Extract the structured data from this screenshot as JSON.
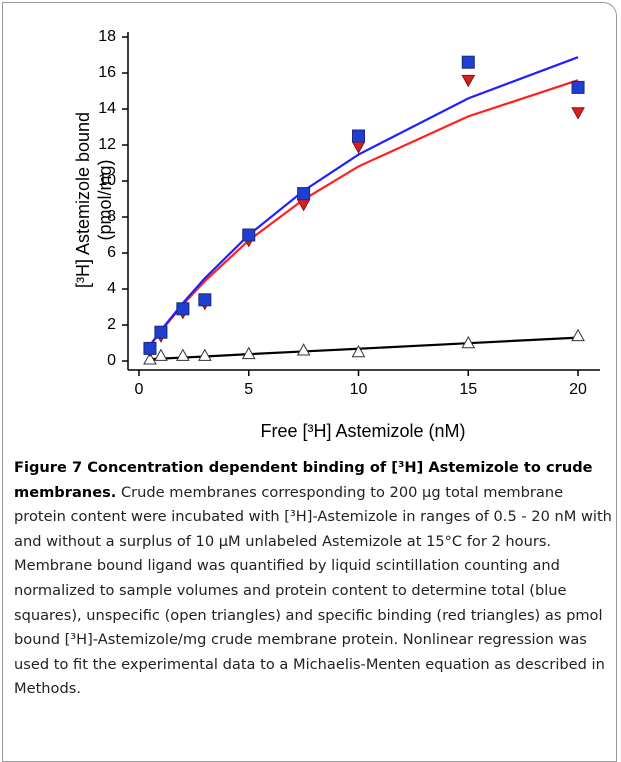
{
  "chart_data": {
    "type": "scatter",
    "x_label": "Free [³H] Astemizole (nM)",
    "y_label": [
      "[³H] Astemizole bound",
      "(pmol/mg)"
    ],
    "x": [
      0.5,
      1,
      2,
      3,
      5,
      7.5,
      10,
      15,
      20
    ],
    "series": [
      {
        "color": "#ffffff",
        "marker": "triangle-up",
        "values": [
          0.1,
          0.3,
          0.3,
          0.3,
          0.4,
          0.6,
          0.5,
          1.0,
          1.4
        ]
      },
      {
        "color": "#d42020",
        "marker": "triangle-down",
        "values": [
          0.6,
          1.4,
          2.7,
          3.2,
          6.7,
          8.7,
          11.9,
          15.6,
          13.8
        ]
      },
      {
        "color": "#1f3fd0",
        "marker": "square",
        "values": [
          0.7,
          1.6,
          2.9,
          3.4,
          7.0,
          9.3,
          12.5,
          16.6,
          15.2
        ]
      }
    ],
    "fits": [
      {
        "color": "#000000",
        "x": [
          0.5,
          1,
          2,
          3,
          5,
          7.5,
          10,
          15,
          20
        ],
        "values": [
          0.1,
          0.13,
          0.19,
          0.25,
          0.38,
          0.53,
          0.68,
          0.99,
          1.3
        ]
      },
      {
        "color": "#ff2020",
        "x": [
          0.5,
          1,
          2,
          3,
          5,
          7.5,
          10,
          15,
          20
        ],
        "values": [
          0.85,
          1.66,
          3.13,
          4.44,
          6.7,
          8.97,
          10.81,
          13.59,
          15.6
        ]
      },
      {
        "color": "#1f1fff",
        "x": [
          0.5,
          1,
          2,
          3,
          5,
          7.5,
          10,
          15,
          20
        ],
        "values": [
          0.87,
          1.7,
          3.22,
          4.6,
          7.0,
          9.46,
          11.47,
          14.59,
          16.88
        ]
      }
    ],
    "xlim": [
      -0.5,
      21
    ],
    "ylim": [
      -0.5,
      18
    ],
    "xticks": [
      0,
      5,
      10,
      15,
      20
    ],
    "yticks": [
      0,
      2,
      4,
      6,
      8,
      10,
      12,
      14,
      16,
      18
    ]
  },
  "caption": {
    "title": "Figure 7 Concentration dependent binding of [³H] Astemizole to crude membranes.",
    "text": "Crude membranes corresponding to 200 µg total membrane protein content were incubated with [³H]-Astemizole in ranges of 0.5 - 20 nM with and without a surplus of 10 µM unlabeled Astemizole at 15°C for 2 hours. Membrane bound ligand was quantified by liquid scintillation counting and normalized to sample volumes and protein content to determine total (blue squares), unspecific (open triangles) and specific binding (red triangles) as pmol bound [³H]-Astemizole/mg crude membrane protein. Nonlinear regression was used to fit the experimental data to a Michaelis-Menten equation as described in Methods."
  }
}
